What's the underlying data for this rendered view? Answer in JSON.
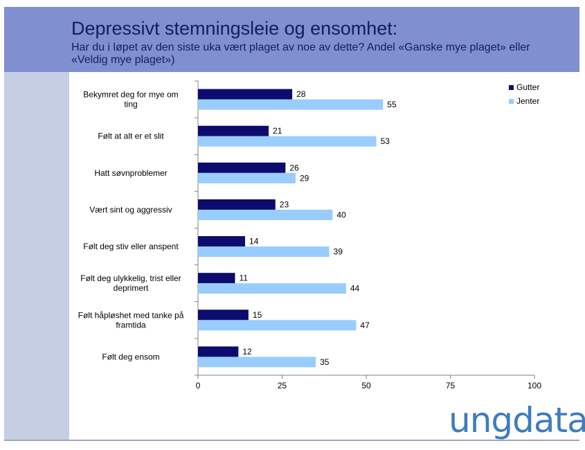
{
  "header": {
    "title": "Depressivt stemningsleie og ensomhet:",
    "subtitle": "Har du i løpet av den siste uka vært plaget av noe av dette? Andel «Ganske mye plaget» eller «Veldig mye plaget»)"
  },
  "logo": {
    "text": "ungdata"
  },
  "colors": {
    "gutter": "#0c0c6e",
    "jenter": "#99ccff",
    "header_bg": "#7f8fcf",
    "sidebar_bg": "#c5cee3"
  },
  "chart_data": {
    "type": "bar",
    "orientation": "horizontal",
    "categories": [
      [
        "Bekymret deg for mye om",
        "ting"
      ],
      [
        "Følt at alt er et slit"
      ],
      [
        "Hatt søvnproblemer"
      ],
      [
        "Vært sint og aggressiv"
      ],
      [
        "Følt deg stiv eller anspent"
      ],
      [
        "Følt deg ulykkelig, trist eller",
        "deprimert"
      ],
      [
        "Følt håpløshet med tanke på",
        "framtida"
      ],
      [
        "Følt deg ensom"
      ]
    ],
    "series": [
      {
        "name": "Gutter",
        "values": [
          28,
          21,
          26,
          23,
          14,
          11,
          15,
          12
        ]
      },
      {
        "name": "Jenter",
        "values": [
          55,
          53,
          29,
          40,
          39,
          44,
          47,
          35
        ]
      }
    ],
    "xlim": [
      0,
      100
    ],
    "xticks": [
      0,
      25,
      50,
      75,
      100
    ],
    "legend": "top-right",
    "grid": false
  }
}
